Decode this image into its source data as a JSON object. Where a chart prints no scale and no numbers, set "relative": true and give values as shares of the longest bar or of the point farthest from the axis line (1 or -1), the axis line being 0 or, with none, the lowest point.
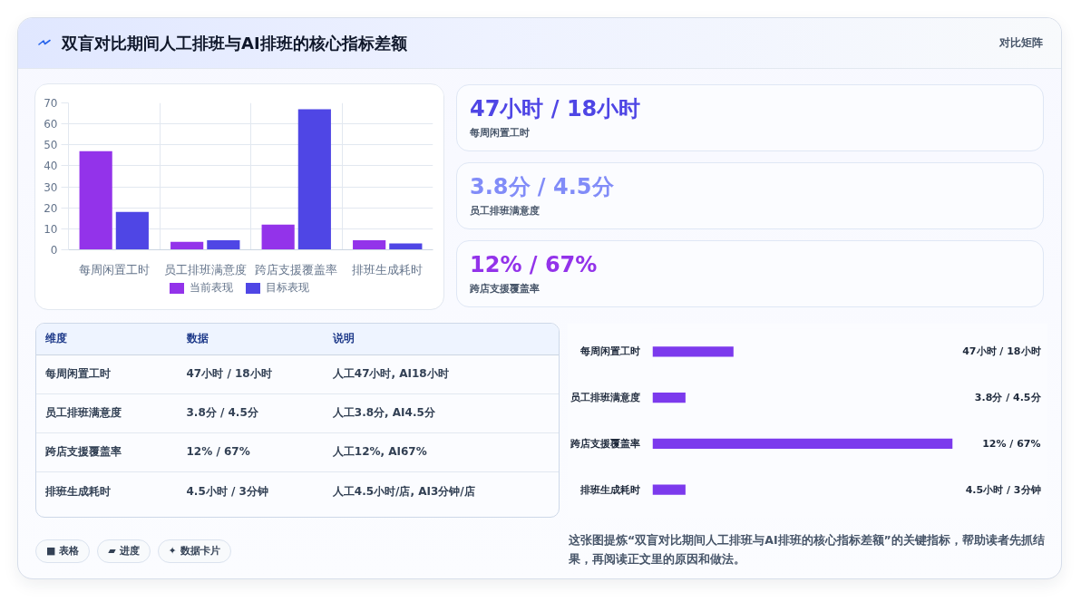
{
  "chart_data": [
    {
      "type": "other",
      "title": "双盲对比期间人工排班与AI排班的核心指标差额",
      "subtitle": "对比矩阵"
    },
    {
      "type": "bar",
      "categories": [
        "每周闲置工时",
        "员工排班满意度",
        "跨店支援覆盖率",
        "排班生成耗时"
      ],
      "series": [
        {
          "name": "当前表现",
          "color": "#9333ea",
          "values": [
            47,
            3.8,
            12,
            4.5
          ]
        },
        {
          "name": "目标表现",
          "color": "#4f46e5",
          "values": [
            18,
            4.5,
            67,
            3
          ]
        }
      ],
      "ylim": [
        0,
        70
      ],
      "yticks": [
        0,
        10,
        20,
        30,
        40,
        50,
        60,
        70
      ],
      "grid": true,
      "legend": "bottom"
    },
    {
      "type": "other",
      "categories": [
        "47小时 / 18小时",
        "3.8分 / 4.5分",
        "12% / 67%"
      ],
      "annotations": [
        "每周闲置工时",
        "员工排班满意度",
        "跨店支援覆盖率"
      ]
    },
    {
      "type": "other",
      "categories": [
        "维度",
        "数据",
        "说明"
      ],
      "annotations": [
        "每周闲置工时",
        "47小时 / 18小时",
        "人工47小时, AI18小时",
        "员工排班满意度",
        "3.8分 / 4.5分",
        "人工3.8分, AI4.5分",
        "跨店支援覆盖率",
        "12% / 67%",
        "人工12%, AI67%",
        "排班生成耗时",
        "4.5小时 / 3分钟",
        "人工4.5小时/店, AI3分钟/店"
      ]
    },
    {
      "type": "bar",
      "orientation": "horizontal",
      "relative": true,
      "categories": [
        "每周闲置工时",
        "员工排班满意度",
        "跨店支援覆盖率",
        "排班生成耗时"
      ],
      "values": [
        0.27,
        0.11,
        1,
        0.11
      ],
      "color": "#7c3aed",
      "annotations": [
        "47小时 / 18小时",
        "3.8分 / 4.5分",
        "12% / 67%",
        "4.5小时 / 3分钟"
      ]
    },
    {
      "type": "other",
      "annotations": [
        "■ 表格",
        "▰ 进度",
        "✦ 数据卡片"
      ]
    },
    {
      "type": "other",
      "annotations": [
        "这张图提炼“双盲对比期间人工排班与AI排班的核心指标差额”的关键指标，帮助读者先抓结果，再阅读正文里的原因和做法。"
      ]
    }
  ]
}
